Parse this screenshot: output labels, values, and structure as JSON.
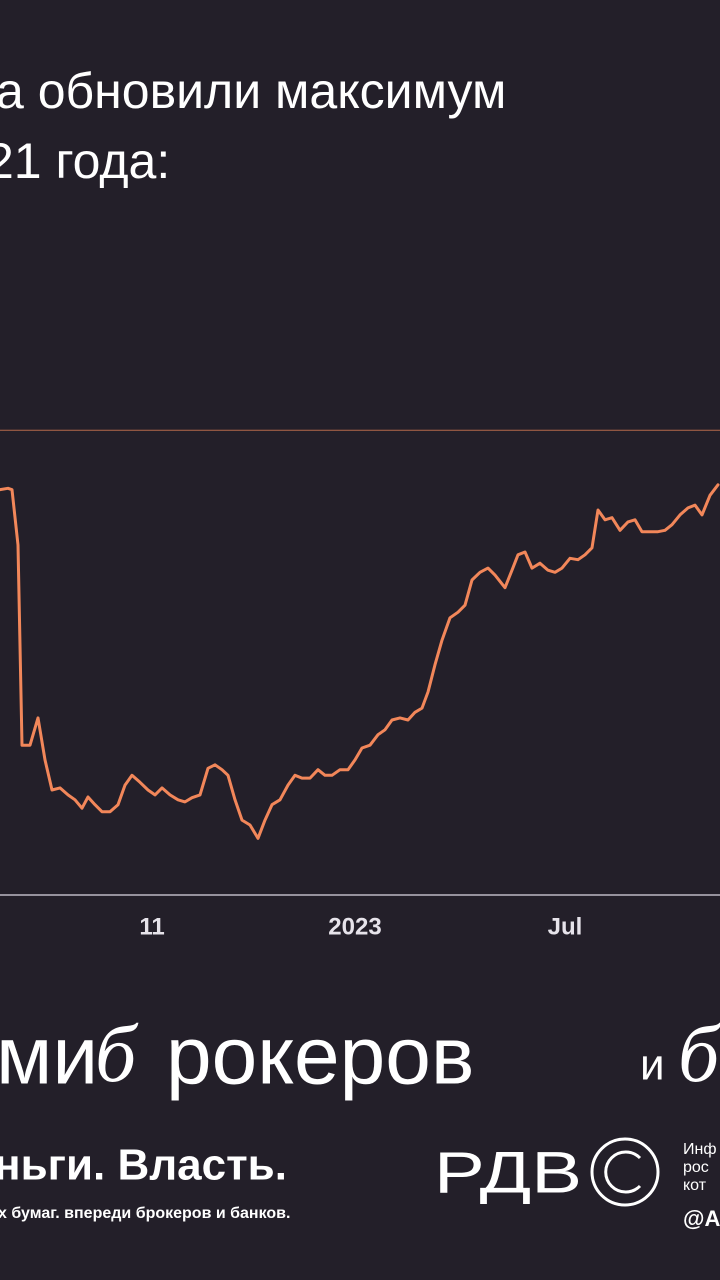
{
  "chart_data": {
    "type": "line",
    "title_lines": [
      "а обновили максимум",
      "21 года:"
    ],
    "x": [
      0,
      1.6,
      2.4,
      3.6,
      4.4,
      6,
      7.6,
      9,
      10.4,
      12,
      13.6,
      15,
      16.4,
      17.6,
      19,
      20.4,
      22,
      23.6,
      25,
      26.4,
      28,
      29.6,
      31,
      32.4,
      34,
      35.6,
      37,
      38.4,
      40,
      41.6,
      43,
      44.4,
      45.6,
      47,
      48.4,
      50,
      51.6,
      53,
      54.4,
      56,
      57.6,
      59,
      60.4,
      62,
      63.6,
      65,
      66.4,
      68,
      69.6,
      71,
      72.4,
      74,
      75.6,
      77,
      78.4,
      80,
      81.6,
      83,
      84.4,
      85.6,
      87,
      88.4,
      90,
      91.6,
      93,
      94.4,
      96,
      97.6,
      99,
      101,
      102.4,
      103.6,
      105,
      106.4,
      108,
      109.6,
      111,
      112.4,
      114,
      115.6,
      117,
      118.4,
      119.6,
      121,
      122.4,
      124,
      125.6,
      127,
      128.4,
      130,
      131.6,
      133,
      134.4,
      136,
      137.6,
      139,
      140.4,
      142,
      143.6
    ],
    "values": [
      57.9,
      58.1,
      57.9,
      50,
      21.4,
      21.4,
      25.3,
      19.3,
      15,
      15.3,
      14.3,
      13.6,
      12.4,
      14,
      12.9,
      11.9,
      11.9,
      12.9,
      15.7,
      17.1,
      16.1,
      15,
      14.3,
      15.3,
      14.3,
      13.6,
      13.3,
      13.9,
      14.3,
      18.1,
      18.6,
      17.9,
      17.1,
      13.6,
      10.7,
      10,
      8.1,
      10.7,
      12.9,
      13.6,
      15.7,
      17.1,
      16.7,
      16.7,
      17.9,
      17.1,
      17.1,
      17.9,
      17.9,
      19.3,
      21,
      21.4,
      22.9,
      23.6,
      25,
      25.3,
      25,
      26.1,
      26.7,
      29,
      32.9,
      36.4,
      39.6,
      40.4,
      41.4,
      45,
      46.1,
      46.7,
      45.7,
      43.9,
      46.4,
      48.6,
      49,
      46.7,
      47.4,
      46.4,
      46.1,
      46.7,
      48.1,
      47.9,
      48.6,
      49.6,
      55,
      53.6,
      53.9,
      52.1,
      53.3,
      53.6,
      51.9,
      51.9,
      51.9,
      52.1,
      52.9,
      54.3,
      55.3,
      55.7,
      54.3,
      57.1,
      58.6
    ],
    "color": "#f2875a",
    "hline": 66.4,
    "xlim": [
      0,
      144
    ],
    "ylim": [
      0,
      100
    ],
    "xticks": [
      {
        "value": 30.4,
        "label": "11"
      },
      {
        "value": 71,
        "label": "2023"
      },
      {
        "value": 113,
        "label": "Jul"
      }
    ]
  },
  "footer": {
    "slogan": [
      "ми",
      "б",
      "рокеров",
      "и",
      "б"
    ],
    "brand": "ньги. Власть.",
    "tagline": "х бумаг. впереди брокеров и банков.",
    "logo": "РДВ",
    "side_lines": [
      "Инф",
      "рос",
      "кот"
    ],
    "handle": "@А"
  }
}
